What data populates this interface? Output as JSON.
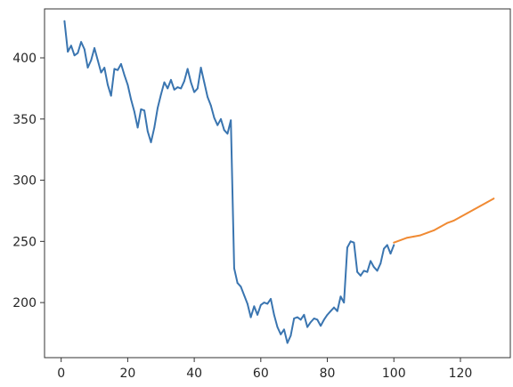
{
  "chart_data": {
    "type": "line",
    "title": "",
    "xlabel": "",
    "ylabel": "",
    "xlim": [
      -5,
      135
    ],
    "ylim": [
      155,
      440
    ],
    "x_ticks": [
      0,
      20,
      40,
      60,
      80,
      100,
      120
    ],
    "y_ticks": [
      200,
      250,
      300,
      350,
      400
    ],
    "grid": false,
    "series": [
      {
        "color": "#3a75b0",
        "points": [
          [
            1,
            430
          ],
          [
            2,
            405
          ],
          [
            3,
            410
          ],
          [
            4,
            402
          ],
          [
            5,
            404
          ],
          [
            6,
            413
          ],
          [
            7,
            407
          ],
          [
            8,
            392
          ],
          [
            9,
            398
          ],
          [
            10,
            408
          ],
          [
            11,
            398
          ],
          [
            12,
            388
          ],
          [
            13,
            392
          ],
          [
            14,
            378
          ],
          [
            15,
            369
          ],
          [
            16,
            391
          ],
          [
            17,
            390
          ],
          [
            18,
            395
          ],
          [
            19,
            386
          ],
          [
            20,
            378
          ],
          [
            21,
            366
          ],
          [
            22,
            356
          ],
          [
            23,
            343
          ],
          [
            24,
            358
          ],
          [
            25,
            357
          ],
          [
            26,
            340
          ],
          [
            27,
            331
          ],
          [
            28,
            343
          ],
          [
            29,
            359
          ],
          [
            30,
            370
          ],
          [
            31,
            380
          ],
          [
            32,
            375
          ],
          [
            33,
            382
          ],
          [
            34,
            374
          ],
          [
            35,
            376
          ],
          [
            36,
            375
          ],
          [
            37,
            381
          ],
          [
            38,
            391
          ],
          [
            39,
            380
          ],
          [
            40,
            372
          ],
          [
            41,
            375
          ],
          [
            42,
            392
          ],
          [
            43,
            380
          ],
          [
            44,
            368
          ],
          [
            45,
            361
          ],
          [
            46,
            351
          ],
          [
            47,
            345
          ],
          [
            48,
            350
          ],
          [
            49,
            341
          ],
          [
            50,
            338
          ],
          [
            51,
            349
          ],
          [
            52,
            228
          ],
          [
            53,
            216
          ],
          [
            54,
            213
          ],
          [
            55,
            206
          ],
          [
            56,
            199
          ],
          [
            57,
            188
          ],
          [
            58,
            197
          ],
          [
            59,
            190
          ],
          [
            60,
            198
          ],
          [
            61,
            200
          ],
          [
            62,
            199
          ],
          [
            63,
            203
          ],
          [
            64,
            190
          ],
          [
            65,
            180
          ],
          [
            66,
            174
          ],
          [
            67,
            178
          ],
          [
            68,
            167
          ],
          [
            69,
            173
          ],
          [
            70,
            187
          ],
          [
            71,
            188
          ],
          [
            72,
            186
          ],
          [
            73,
            190
          ],
          [
            74,
            180
          ],
          [
            75,
            184
          ],
          [
            76,
            187
          ],
          [
            77,
            186
          ],
          [
            78,
            181
          ],
          [
            79,
            186
          ],
          [
            80,
            190
          ],
          [
            81,
            193
          ],
          [
            82,
            196
          ],
          [
            83,
            193
          ],
          [
            84,
            205
          ],
          [
            85,
            200
          ],
          [
            86,
            245
          ],
          [
            87,
            250
          ],
          [
            88,
            249
          ],
          [
            89,
            225
          ],
          [
            90,
            222
          ],
          [
            91,
            226
          ],
          [
            92,
            225
          ],
          [
            93,
            234
          ],
          [
            94,
            229
          ],
          [
            95,
            226
          ],
          [
            96,
            232
          ],
          [
            97,
            244
          ],
          [
            98,
            247
          ],
          [
            99,
            240
          ],
          [
            100,
            247
          ]
        ]
      },
      {
        "color": "#f08a33",
        "points": [
          [
            100,
            249
          ],
          [
            102,
            251
          ],
          [
            104,
            253
          ],
          [
            106,
            254
          ],
          [
            108,
            255
          ],
          [
            110,
            257
          ],
          [
            112,
            259
          ],
          [
            114,
            262
          ],
          [
            116,
            265
          ],
          [
            118,
            267
          ],
          [
            120,
            270
          ],
          [
            122,
            273
          ],
          [
            124,
            276
          ],
          [
            126,
            279
          ],
          [
            128,
            282
          ],
          [
            130,
            285
          ]
        ]
      }
    ]
  }
}
